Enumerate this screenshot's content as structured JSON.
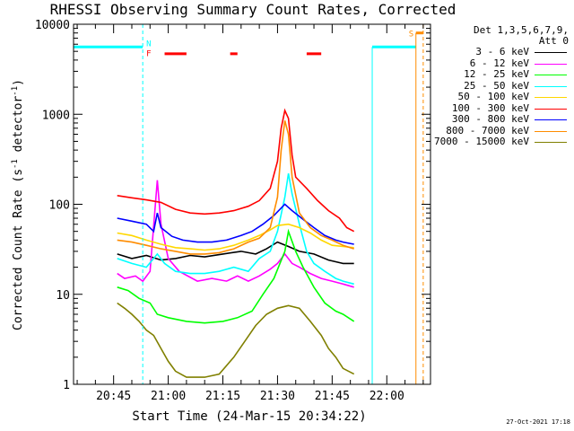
{
  "chart_data": {
    "type": "line",
    "title": "RHESSI Observing Summary Count Rates, Corrected",
    "xlabel": "Start Time (24-Mar-15 20:34:22)",
    "ylabel_main": "Corrected Count Rate (s",
    "ylabel_sup1": "-1",
    "ylabel_mid": " detector",
    "ylabel_sup2": "-1",
    "ylabel_end": ")",
    "y_scale": "log",
    "ylim": [
      1,
      10000
    ],
    "y_ticks": [
      1,
      10,
      100,
      1000,
      10000
    ],
    "y_tick_labels": [
      "1",
      "10",
      "100",
      "1000",
      "10000"
    ],
    "xlim": [
      "20:34",
      "22:12"
    ],
    "x_ticks": [
      "20:45",
      "21:00",
      "21:15",
      "21:30",
      "21:45",
      "22:00"
    ],
    "legend_header": [
      "Det 1,3,5,6,7,9,",
      "Att 0"
    ],
    "series": [
      {
        "name": "3 - 6 keV",
        "color": "#000000",
        "points": [
          [
            "20:46",
            28
          ],
          [
            "20:50",
            25
          ],
          [
            "20:54",
            27
          ],
          [
            "20:58",
            24
          ],
          [
            "21:02",
            25
          ],
          [
            "21:06",
            27
          ],
          [
            "21:10",
            26
          ],
          [
            "21:15",
            28
          ],
          [
            "21:20",
            30
          ],
          [
            "21:24",
            28
          ],
          [
            "21:27",
            32
          ],
          [
            "21:30",
            38
          ],
          [
            "21:33",
            34
          ],
          [
            "21:36",
            30
          ],
          [
            "21:40",
            28
          ],
          [
            "21:44",
            24
          ],
          [
            "21:48",
            22
          ],
          [
            "21:51",
            22
          ]
        ]
      },
      {
        "name": "6 - 12 keV",
        "color": "#ff00ff",
        "points": [
          [
            "20:46",
            17
          ],
          [
            "20:48",
            15
          ],
          [
            "20:51",
            16
          ],
          [
            "20:53",
            14
          ],
          [
            "20:55",
            18
          ],
          [
            "20:57",
            185
          ],
          [
            "20:58",
            60
          ],
          [
            "21:00",
            25
          ],
          [
            "21:03",
            18
          ],
          [
            "21:08",
            14
          ],
          [
            "21:12",
            15
          ],
          [
            "21:16",
            14
          ],
          [
            "21:19",
            16
          ],
          [
            "21:22",
            14
          ],
          [
            "21:25",
            16
          ],
          [
            "21:28",
            19
          ],
          [
            "21:30",
            22
          ],
          [
            "21:32",
            28
          ],
          [
            "21:34",
            22
          ],
          [
            "21:36",
            20
          ],
          [
            "21:39",
            17
          ],
          [
            "21:42",
            15
          ],
          [
            "21:45",
            14
          ],
          [
            "21:48",
            13
          ],
          [
            "21:51",
            12
          ]
        ]
      },
      {
        "name": "12 - 25 keV",
        "color": "#00ff00",
        "points": [
          [
            "20:46",
            12
          ],
          [
            "20:49",
            11
          ],
          [
            "20:52",
            9
          ],
          [
            "20:55",
            8
          ],
          [
            "20:57",
            6
          ],
          [
            "21:00",
            5.5
          ],
          [
            "21:05",
            5
          ],
          [
            "21:10",
            4.8
          ],
          [
            "21:15",
            5
          ],
          [
            "21:19",
            5.5
          ],
          [
            "21:23",
            6.5
          ],
          [
            "21:26",
            10
          ],
          [
            "21:29",
            15
          ],
          [
            "21:32",
            30
          ],
          [
            "21:33",
            50
          ],
          [
            "21:35",
            30
          ],
          [
            "21:37",
            20
          ],
          [
            "21:40",
            12
          ],
          [
            "21:43",
            8
          ],
          [
            "21:46",
            6.5
          ],
          [
            "21:48",
            6
          ],
          [
            "21:51",
            5
          ]
        ]
      },
      {
        "name": "25 - 50 keV",
        "color": "#00ffff",
        "points": [
          [
            "20:46",
            25
          ],
          [
            "20:50",
            22
          ],
          [
            "20:54",
            20
          ],
          [
            "20:57",
            28
          ],
          [
            "20:59",
            22
          ],
          [
            "21:02",
            18
          ],
          [
            "21:06",
            17
          ],
          [
            "21:10",
            17
          ],
          [
            "21:14",
            18
          ],
          [
            "21:18",
            20
          ],
          [
            "21:22",
            18
          ],
          [
            "21:25",
            25
          ],
          [
            "21:28",
            30
          ],
          [
            "21:30",
            50
          ],
          [
            "21:32",
            120
          ],
          [
            "21:33",
            220
          ],
          [
            "21:34",
            130
          ],
          [
            "21:36",
            60
          ],
          [
            "21:38",
            30
          ],
          [
            "21:40",
            22
          ],
          [
            "21:43",
            18
          ],
          [
            "21:46",
            15
          ],
          [
            "21:48",
            14
          ],
          [
            "21:51",
            13
          ]
        ]
      },
      {
        "name": "50 - 100 keV",
        "color": "#ffd700",
        "points": [
          [
            "20:46",
            48
          ],
          [
            "20:50",
            45
          ],
          [
            "20:54",
            40
          ],
          [
            "20:58",
            36
          ],
          [
            "21:02",
            33
          ],
          [
            "21:06",
            32
          ],
          [
            "21:10",
            31
          ],
          [
            "21:14",
            32
          ],
          [
            "21:18",
            35
          ],
          [
            "21:22",
            40
          ],
          [
            "21:25",
            45
          ],
          [
            "21:28",
            52
          ],
          [
            "21:30",
            58
          ],
          [
            "21:33",
            60
          ],
          [
            "21:36",
            55
          ],
          [
            "21:39",
            48
          ],
          [
            "21:42",
            40
          ],
          [
            "21:45",
            35
          ],
          [
            "21:48",
            34
          ],
          [
            "21:51",
            33
          ]
        ]
      },
      {
        "name": "100 - 300 keV",
        "color": "#ff0000",
        "points": [
          [
            "20:46",
            125
          ],
          [
            "20:50",
            118
          ],
          [
            "20:54",
            112
          ],
          [
            "20:58",
            105
          ],
          [
            "21:02",
            88
          ],
          [
            "21:06",
            80
          ],
          [
            "21:10",
            78
          ],
          [
            "21:14",
            80
          ],
          [
            "21:18",
            85
          ],
          [
            "21:22",
            95
          ],
          [
            "21:25",
            110
          ],
          [
            "21:28",
            150
          ],
          [
            "21:30",
            300
          ],
          [
            "21:31",
            700
          ],
          [
            "21:32",
            1100
          ],
          [
            "21:33",
            900
          ],
          [
            "21:34",
            350
          ],
          [
            "21:35",
            200
          ],
          [
            "21:38",
            150
          ],
          [
            "21:41",
            110
          ],
          [
            "21:44",
            85
          ],
          [
            "21:47",
            70
          ],
          [
            "21:49",
            55
          ],
          [
            "21:51",
            50
          ]
        ]
      },
      {
        "name": "300 - 800 keV",
        "color": "#0000ff",
        "points": [
          [
            "20:46",
            70
          ],
          [
            "20:50",
            65
          ],
          [
            "20:54",
            60
          ],
          [
            "20:56",
            50
          ],
          [
            "20:57",
            80
          ],
          [
            "20:58",
            55
          ],
          [
            "21:01",
            44
          ],
          [
            "21:04",
            40
          ],
          [
            "21:08",
            38
          ],
          [
            "21:12",
            38
          ],
          [
            "21:16",
            40
          ],
          [
            "21:20",
            45
          ],
          [
            "21:23",
            50
          ],
          [
            "21:26",
            60
          ],
          [
            "21:29",
            75
          ],
          [
            "21:32",
            100
          ],
          [
            "21:34",
            85
          ],
          [
            "21:37",
            68
          ],
          [
            "21:40",
            55
          ],
          [
            "21:43",
            45
          ],
          [
            "21:46",
            40
          ],
          [
            "21:48",
            38
          ],
          [
            "21:51",
            36
          ]
        ]
      },
      {
        "name": "800 - 7000 keV",
        "color": "#ff8c00",
        "points": [
          [
            "20:46",
            40
          ],
          [
            "20:50",
            38
          ],
          [
            "20:54",
            35
          ],
          [
            "20:58",
            32
          ],
          [
            "21:02",
            30
          ],
          [
            "21:06",
            28
          ],
          [
            "21:10",
            28
          ],
          [
            "21:14",
            29
          ],
          [
            "21:18",
            32
          ],
          [
            "21:22",
            38
          ],
          [
            "21:25",
            42
          ],
          [
            "21:28",
            55
          ],
          [
            "21:30",
            120
          ],
          [
            "21:31",
            400
          ],
          [
            "21:32",
            850
          ],
          [
            "21:33",
            600
          ],
          [
            "21:34",
            200
          ],
          [
            "21:36",
            80
          ],
          [
            "21:39",
            55
          ],
          [
            "21:42",
            45
          ],
          [
            "21:45",
            40
          ],
          [
            "21:48",
            35
          ],
          [
            "21:51",
            32
          ]
        ]
      },
      {
        "name": "7000 - 15000 keV",
        "color": "#808000",
        "points": [
          [
            "20:46",
            8
          ],
          [
            "20:48",
            7
          ],
          [
            "20:50",
            6
          ],
          [
            "20:52",
            5
          ],
          [
            "20:54",
            4
          ],
          [
            "20:56",
            3.5
          ],
          [
            "20:58",
            2.5
          ],
          [
            "21:00",
            1.8
          ],
          [
            "21:02",
            1.4
          ],
          [
            "21:05",
            1.2
          ],
          [
            "21:10",
            1.2
          ],
          [
            "21:14",
            1.3
          ],
          [
            "21:18",
            2
          ],
          [
            "21:21",
            3
          ],
          [
            "21:24",
            4.5
          ],
          [
            "21:27",
            6
          ],
          [
            "21:30",
            7
          ],
          [
            "21:33",
            7.5
          ],
          [
            "21:36",
            7
          ],
          [
            "21:39",
            5
          ],
          [
            "21:42",
            3.5
          ],
          [
            "21:44",
            2.5
          ],
          [
            "21:46",
            2
          ],
          [
            "21:48",
            1.5
          ],
          [
            "21:51",
            1.3
          ]
        ]
      }
    ],
    "annotations": [
      {
        "label": "N",
        "color": "#00ffff"
      },
      {
        "label": "F",
        "color": "#ff0000"
      },
      {
        "label": "S",
        "color": "#ff8c00"
      }
    ],
    "flag_bars": {
      "night_color": "#00ffff",
      "night": [
        [
          "20:34",
          "20:53"
        ],
        [
          "21:56",
          "22:08"
        ]
      ],
      "flare_color": "#ff0000",
      "flare": [
        [
          "20:59",
          "21:05"
        ],
        [
          "21:17",
          "21:19"
        ],
        [
          "21:38",
          "21:42"
        ]
      ],
      "saa_color": "#ff8c00",
      "saa": [
        [
          "22:08",
          "22:10"
        ]
      ]
    },
    "datestamp": "27-Oct-2021 17:18"
  }
}
